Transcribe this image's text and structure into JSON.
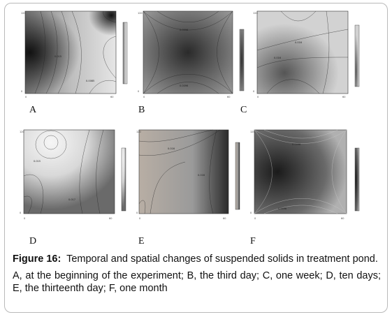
{
  "figure": {
    "label": "Figure 16:",
    "title": "Temporal and spatial changes of suspended solids in treatment pond.",
    "description": "A, at the beginning of the experiment; B, the third day; C, one week; D, ten days; E, the thirteenth day; F, one month"
  },
  "panels": [
    {
      "label": "A"
    },
    {
      "label": "B"
    },
    {
      "label": "C"
    },
    {
      "label": "D"
    },
    {
      "label": "E"
    },
    {
      "label": "F"
    }
  ]
}
